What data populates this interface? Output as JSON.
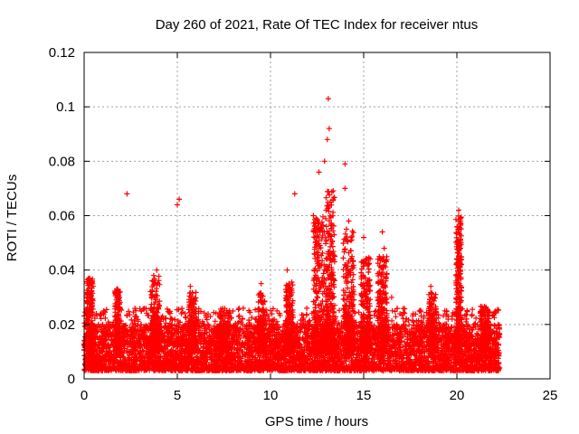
{
  "chart_data": {
    "type": "scatter",
    "title": "Day 260 of 2021, Rate Of TEC Index for receiver ntus",
    "xlabel": "GPS time / hours",
    "ylabel": "ROTI / TECUs",
    "xlim": [
      0,
      25
    ],
    "ylim": [
      0,
      0.12
    ],
    "x_ticks": [
      0,
      5,
      10,
      15,
      20,
      25
    ],
    "x_tick_labels": [
      "0",
      "5",
      "10",
      "15",
      "20",
      "25"
    ],
    "y_ticks": [
      0,
      0.02,
      0.04,
      0.06,
      0.08,
      0.1,
      0.12
    ],
    "y_tick_labels": [
      "0",
      "0.02",
      "0.04",
      "0.06",
      "0.08",
      "0.1",
      "0.12"
    ],
    "grid": true,
    "marker": "+",
    "series_color": "#ff0000",
    "data_extent_hours": [
      0,
      22.3
    ],
    "baseline_band": [
      0.003,
      0.02
    ],
    "notable_points": [
      {
        "x": 2.3,
        "y": 0.068
      },
      {
        "x": 5.0,
        "y": 0.064
      },
      {
        "x": 5.1,
        "y": 0.066
      },
      {
        "x": 11.3,
        "y": 0.068
      },
      {
        "x": 13.1,
        "y": 0.103
      },
      {
        "x": 13.15,
        "y": 0.092
      },
      {
        "x": 13.05,
        "y": 0.088
      },
      {
        "x": 12.9,
        "y": 0.08
      },
      {
        "x": 14.0,
        "y": 0.079
      },
      {
        "x": 14.0,
        "y": 0.07
      },
      {
        "x": 12.6,
        "y": 0.076
      },
      {
        "x": 13.2,
        "y": 0.065
      },
      {
        "x": 20.1,
        "y": 0.062
      },
      {
        "x": 20.2,
        "y": 0.058
      },
      {
        "x": 20.1,
        "y": 0.05
      },
      {
        "x": 20.2,
        "y": 0.04
      },
      {
        "x": 16.0,
        "y": 0.054
      },
      {
        "x": 16.1,
        "y": 0.048
      },
      {
        "x": 15.0,
        "y": 0.052
      },
      {
        "x": 14.2,
        "y": 0.058
      },
      {
        "x": 12.3,
        "y": 0.06
      },
      {
        "x": 3.9,
        "y": 0.04
      },
      {
        "x": 3.7,
        "y": 0.036
      },
      {
        "x": 10.9,
        "y": 0.04
      },
      {
        "x": 9.5,
        "y": 0.035
      },
      {
        "x": 18.6,
        "y": 0.034
      },
      {
        "x": 0.3,
        "y": 0.037
      },
      {
        "x": 1.8,
        "y": 0.033
      },
      {
        "x": 5.7,
        "y": 0.034
      },
      {
        "x": 16.5,
        "y": 0.03
      }
    ],
    "activity_bursts": [
      {
        "center": 0.3,
        "width": 0.35,
        "peak": 0.037
      },
      {
        "center": 1.8,
        "width": 0.3,
        "peak": 0.033
      },
      {
        "center": 3.8,
        "width": 0.5,
        "peak": 0.038
      },
      {
        "center": 5.8,
        "width": 0.4,
        "peak": 0.032
      },
      {
        "center": 7.5,
        "width": 0.6,
        "peak": 0.025
      },
      {
        "center": 9.5,
        "width": 0.4,
        "peak": 0.032
      },
      {
        "center": 11.0,
        "width": 0.4,
        "peak": 0.036
      },
      {
        "center": 12.6,
        "width": 0.6,
        "peak": 0.06
      },
      {
        "center": 13.2,
        "width": 0.5,
        "peak": 0.07
      },
      {
        "center": 14.2,
        "width": 0.6,
        "peak": 0.055
      },
      {
        "center": 15.1,
        "width": 0.5,
        "peak": 0.045
      },
      {
        "center": 16.0,
        "width": 0.5,
        "peak": 0.045
      },
      {
        "center": 18.7,
        "width": 0.4,
        "peak": 0.032
      },
      {
        "center": 20.1,
        "width": 0.3,
        "peak": 0.06
      },
      {
        "center": 21.5,
        "width": 0.5,
        "peak": 0.027
      }
    ]
  }
}
